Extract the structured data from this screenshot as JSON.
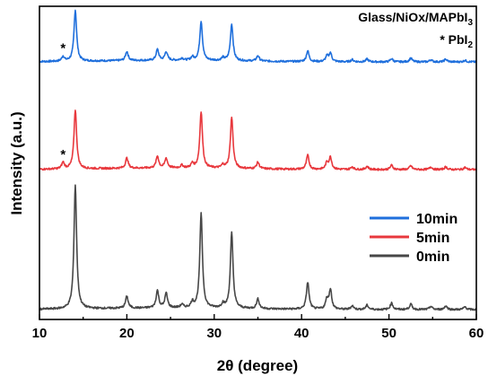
{
  "chart_data": {
    "type": "line",
    "xlabel": "2θ (degree)",
    "ylabel": "Intensity (a.u.)",
    "xlim": [
      10,
      60
    ],
    "x_ticks": [
      "10",
      "20",
      "30",
      "40",
      "50",
      "60"
    ],
    "annotation": {
      "line1_main": "Glass/NiOx/MAPbI",
      "line1_sub": "3",
      "line2_main": "* PbI",
      "line2_sub": "2"
    },
    "legend_position": "right-center",
    "peak_marker": "*",
    "peak_marker_2theta": 12.7,
    "series": [
      {
        "name": "10min",
        "color": "#1f6fdc",
        "baseline": 0.7,
        "peaks": [
          [
            12.7,
            0.09
          ],
          [
            14.1,
            0.95
          ],
          [
            20.0,
            0.17
          ],
          [
            23.5,
            0.2
          ],
          [
            24.5,
            0.16
          ],
          [
            26.3,
            0.04
          ],
          [
            27.5,
            0.06
          ],
          [
            28.5,
            0.73
          ],
          [
            31.0,
            0.05
          ],
          [
            32.0,
            0.68
          ],
          [
            35.0,
            0.1
          ],
          [
            40.7,
            0.2
          ],
          [
            42.9,
            0.1
          ],
          [
            43.3,
            0.16
          ],
          [
            45.8,
            0.04
          ],
          [
            47.5,
            0.05
          ],
          [
            50.3,
            0.06
          ],
          [
            52.5,
            0.07
          ],
          [
            54.8,
            0.04
          ],
          [
            56.5,
            0.05
          ],
          [
            58.7,
            0.03
          ]
        ]
      },
      {
        "name": "5min",
        "color": "#e8383d",
        "baseline": 0.7,
        "peaks": [
          [
            12.7,
            0.12
          ],
          [
            14.1,
            1.1
          ],
          [
            20.0,
            0.19
          ],
          [
            23.5,
            0.22
          ],
          [
            24.5,
            0.18
          ],
          [
            26.3,
            0.05
          ],
          [
            27.5,
            0.08
          ],
          [
            28.5,
            1.05
          ],
          [
            31.0,
            0.06
          ],
          [
            32.0,
            0.95
          ],
          [
            35.0,
            0.12
          ],
          [
            40.7,
            0.26
          ],
          [
            42.9,
            0.12
          ],
          [
            43.3,
            0.22
          ],
          [
            45.8,
            0.05
          ],
          [
            47.5,
            0.06
          ],
          [
            50.3,
            0.08
          ],
          [
            52.5,
            0.07
          ],
          [
            54.8,
            0.05
          ],
          [
            56.5,
            0.05
          ],
          [
            58.7,
            0.04
          ]
        ]
      },
      {
        "name": "0min",
        "color": "#474747",
        "baseline": 0.7,
        "peaks": [
          [
            14.1,
            2.3
          ],
          [
            20.0,
            0.22
          ],
          [
            23.5,
            0.32
          ],
          [
            24.5,
            0.27
          ],
          [
            26.3,
            0.06
          ],
          [
            27.5,
            0.1
          ],
          [
            28.5,
            1.75
          ],
          [
            31.0,
            0.08
          ],
          [
            32.0,
            1.4
          ],
          [
            35.0,
            0.18
          ],
          [
            40.7,
            0.5
          ],
          [
            42.9,
            0.18
          ],
          [
            43.3,
            0.36
          ],
          [
            45.8,
            0.07
          ],
          [
            47.5,
            0.08
          ],
          [
            50.3,
            0.12
          ],
          [
            52.5,
            0.1
          ],
          [
            54.8,
            0.06
          ],
          [
            56.5,
            0.07
          ],
          [
            58.7,
            0.05
          ]
        ]
      }
    ],
    "vertical_offsets": {
      "10min": 4.6,
      "5min": 2.6,
      "0min": 0
    }
  }
}
